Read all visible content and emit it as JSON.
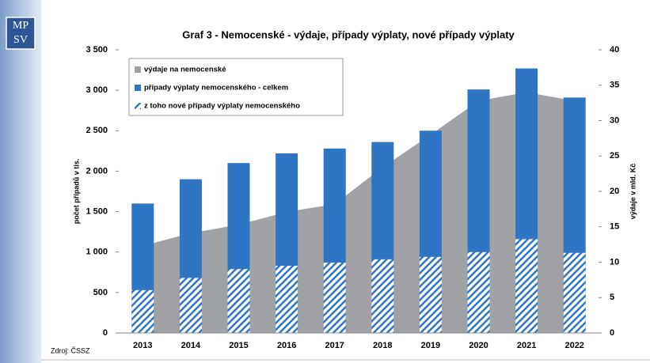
{
  "logo": [
    "MP",
    "SV"
  ],
  "source": "Zdroj: ČSSZ",
  "chart_data": {
    "type": "bar",
    "title": "Graf 3 - Nemocenské - výdaje, případy výplaty, nové případy výplaty",
    "y_label": "počet případů v tis.",
    "y2_label": "výdaje v mld. Kč",
    "categories": [
      "2013",
      "2014",
      "2015",
      "2016",
      "2017",
      "2018",
      "2019",
      "2020",
      "2021",
      "2022"
    ],
    "series": [
      {
        "name": "výdaje na nemocenské",
        "type": "area",
        "axis": "y2",
        "color": "#a0a2a5",
        "values": [
          12.3,
          14.1,
          15.3,
          17.1,
          18.2,
          23.4,
          28.0,
          32.8,
          34.0,
          32.8
        ]
      },
      {
        "name": "případy výplaty nemocenského - celkem",
        "type": "bar",
        "color": "#2e75c4",
        "values": [
          1600,
          1900,
          2100,
          2220,
          2280,
          2360,
          2500,
          3010,
          3270,
          2910
        ]
      },
      {
        "name": "z toho nové případy výplaty nemocenského",
        "type": "bar",
        "color": "#2e75c4",
        "pattern": "hatch",
        "values": [
          530,
          680,
          790,
          830,
          870,
          910,
          940,
          1000,
          1160,
          990
        ]
      }
    ],
    "ylim": [
      0,
      3500
    ],
    "yticks": [
      0,
      500,
      {
        "value": 1000,
        "label": "1 000"
      },
      {
        "value": 1500,
        "label": "1 500"
      },
      {
        "value": 2000,
        "label": "2 000"
      },
      {
        "value": 2500,
        "label": "2 500"
      },
      {
        "value": 3000,
        "label": "3 000"
      },
      {
        "value": 3500,
        "label": "3 500"
      }
    ],
    "y2lim": [
      0,
      40
    ],
    "y2ticks": [
      0,
      5,
      10,
      15,
      20,
      25,
      30,
      35,
      40
    ],
    "grid": false,
    "legend": "top-left"
  }
}
